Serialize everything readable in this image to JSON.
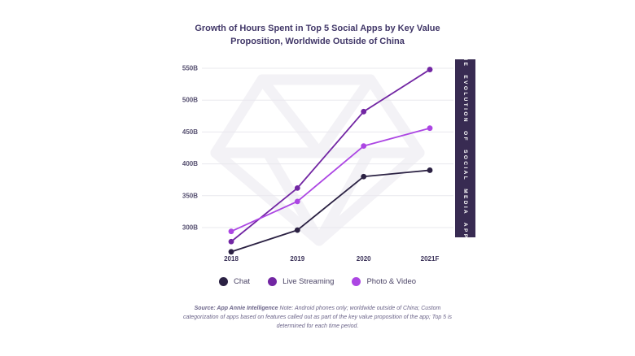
{
  "title": "Growth of Hours Spent in Top 5 Social Apps by Key Value Proposition, Worldwide Outside of China",
  "sidebar_banner": {
    "text": "THE EVOLUTION OF SOCIAL MEDIA APPS",
    "background": "#382b52",
    "text_color": "#ffffff"
  },
  "footer": {
    "source_label": "Source: App Annie Intelligence",
    "note": " Note: Android phones only; worldwide outside of China; Custom categorization of apps based on features called out as part of the key value proposition of the app; Top 5 is determined for each time period."
  },
  "chart_data": {
    "type": "line",
    "title": "Growth of Hours Spent in Top 5 Social Apps by Key Value Proposition, Worldwide Outside of China",
    "categories": [
      "2018",
      "2019",
      "2020",
      "2021F"
    ],
    "series": [
      {
        "name": "Chat",
        "color": "#2b2143",
        "values": [
          262,
          296,
          380,
          390
        ]
      },
      {
        "name": "Live Streaming",
        "color": "#7226a3",
        "values": [
          278,
          362,
          482,
          548
        ]
      },
      {
        "name": "Photo & Video",
        "color": "#ac46e3",
        "values": [
          294,
          341,
          428,
          456
        ]
      }
    ],
    "unit": "B (hours)",
    "yticks": [
      550,
      500,
      450,
      400,
      350,
      300
    ],
    "ytick_labels": [
      "550B",
      "500B",
      "450B",
      "400B",
      "350B",
      "300B"
    ],
    "ylim": [
      255,
      560
    ],
    "grid": true,
    "legend_position": "bottom",
    "colors": {
      "gridline": "#e9e8ee",
      "ytick_text": "#565070",
      "xtick_text": "#3b3259",
      "watermark": "#f3f2f6"
    }
  }
}
